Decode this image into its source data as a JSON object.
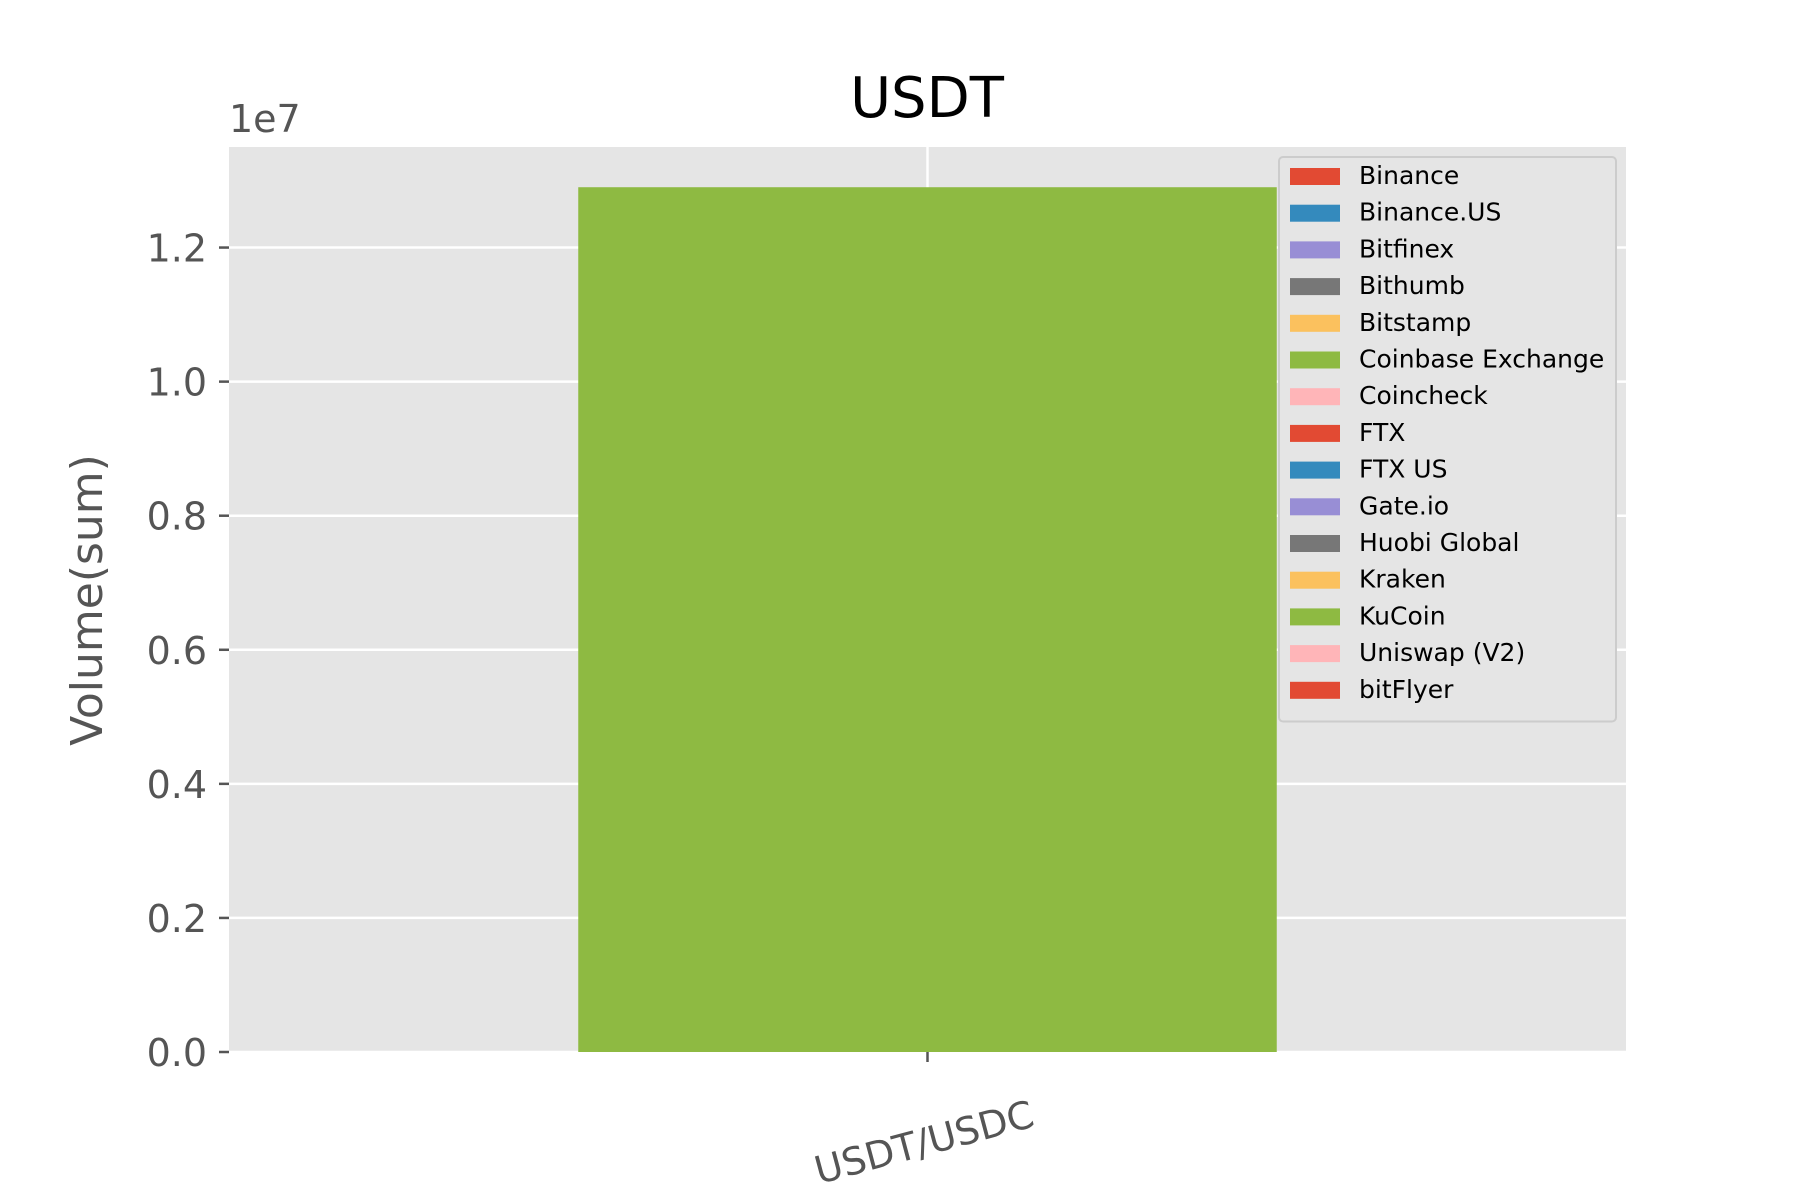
{
  "chart_data": {
    "type": "bar",
    "title": "USDT",
    "xlabel": "",
    "ylabel": "Volume(sum)",
    "y_offset_label": "1e7",
    "y_scale_factor": 10000000,
    "ylim": [
      0,
      13500000
    ],
    "yticks": [
      0,
      2000000,
      4000000,
      6000000,
      8000000,
      10000000,
      12000000
    ],
    "ytick_labels": [
      "0.0",
      "0.2",
      "0.4",
      "0.6",
      "0.8",
      "1.0",
      "1.2"
    ],
    "grid": true,
    "categories": [
      "USDT/USDC"
    ],
    "series": [
      {
        "name": "Coinbase Exchange",
        "values": [
          12900000
        ],
        "color": "#8EBA42"
      }
    ],
    "legend": {
      "placement": "upper right",
      "entries": [
        {
          "name": "Binance",
          "color": "#E24A33"
        },
        {
          "name": "Binance.US",
          "color": "#348ABD"
        },
        {
          "name": "Bitfinex",
          "color": "#988ED5"
        },
        {
          "name": "Bithumb",
          "color": "#777777"
        },
        {
          "name": "Bitstamp",
          "color": "#FBC15E"
        },
        {
          "name": "Coinbase Exchange",
          "color": "#8EBA42"
        },
        {
          "name": "Coincheck",
          "color": "#FFB5B8"
        },
        {
          "name": "FTX",
          "color": "#E24A33"
        },
        {
          "name": "FTX US",
          "color": "#348ABD"
        },
        {
          "name": "Gate.io",
          "color": "#988ED5"
        },
        {
          "name": "Huobi Global",
          "color": "#777777"
        },
        {
          "name": "Kraken",
          "color": "#FBC15E"
        },
        {
          "name": "KuCoin",
          "color": "#8EBA42"
        },
        {
          "name": "Uniswap (V2)",
          "color": "#FFB5B8"
        },
        {
          "name": "bitFlyer",
          "color": "#E24A33"
        }
      ]
    },
    "colors": {
      "plot_background": "#E5E5E5",
      "grid": "#FFFFFF",
      "tick_text": "#555555",
      "title_text": "#000000"
    }
  }
}
